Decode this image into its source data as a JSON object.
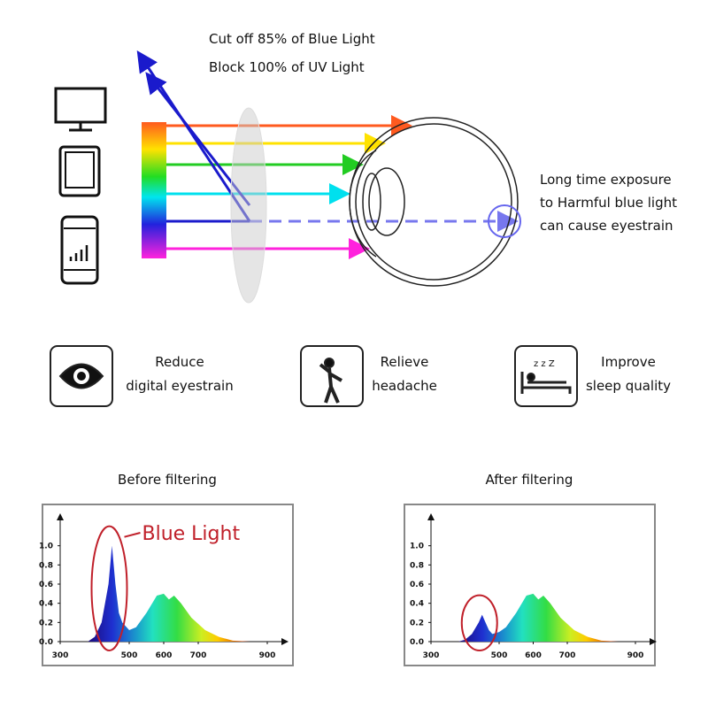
{
  "header": {
    "lines": [
      "Cut off 85% of Blue Light",
      "Block 100% of UV Light"
    ]
  },
  "note": {
    "lines": [
      "Long time exposure",
      "to Harmful blue light",
      "can cause eyestrain"
    ]
  },
  "benefits": [
    {
      "lines": [
        "Reduce",
        "digital eyestrain"
      ]
    },
    {
      "lines": [
        "Relieve",
        "headache"
      ]
    },
    {
      "lines": [
        "Improve",
        "sleep quality"
      ]
    }
  ],
  "chart_data": [
    {
      "type": "area",
      "title": "Before filtering",
      "annotation": "Blue Light",
      "x": [
        380,
        400,
        420,
        440,
        450,
        460,
        470,
        480,
        500,
        520,
        550,
        580,
        600,
        615,
        630,
        650,
        680,
        720,
        760,
        800,
        850
      ],
      "values": [
        0,
        0.05,
        0.2,
        0.6,
        1.0,
        0.6,
        0.3,
        0.2,
        0.12,
        0.15,
        0.3,
        0.48,
        0.5,
        0.44,
        0.48,
        0.4,
        0.25,
        0.12,
        0.05,
        0.01,
        0
      ],
      "xlim": [
        300,
        900
      ],
      "xticks": [
        300,
        500,
        600,
        700,
        900
      ],
      "ylim": [
        0,
        1.2
      ],
      "yticks": [
        {
          "value": 0,
          "label": "0.0"
        },
        0.2,
        0.4,
        0.6,
        0.8,
        {
          "value": 1,
          "label": "1.0"
        }
      ]
    },
    {
      "type": "area",
      "title": "After filtering",
      "x": [
        380,
        400,
        420,
        440,
        450,
        460,
        470,
        480,
        500,
        520,
        550,
        580,
        600,
        615,
        630,
        650,
        680,
        720,
        760,
        800,
        850
      ],
      "values": [
        0,
        0.02,
        0.08,
        0.2,
        0.28,
        0.2,
        0.12,
        0.08,
        0.1,
        0.15,
        0.3,
        0.48,
        0.5,
        0.44,
        0.48,
        0.4,
        0.25,
        0.12,
        0.05,
        0.01,
        0
      ],
      "xlim": [
        300,
        900
      ],
      "xticks": [
        300,
        500,
        600,
        700,
        900
      ],
      "ylim": [
        0,
        1.2
      ],
      "yticks": [
        {
          "value": 0,
          "label": "0.0"
        },
        0.2,
        0.4,
        0.6,
        0.8,
        {
          "value": 1,
          "label": "1.0"
        }
      ]
    }
  ]
}
